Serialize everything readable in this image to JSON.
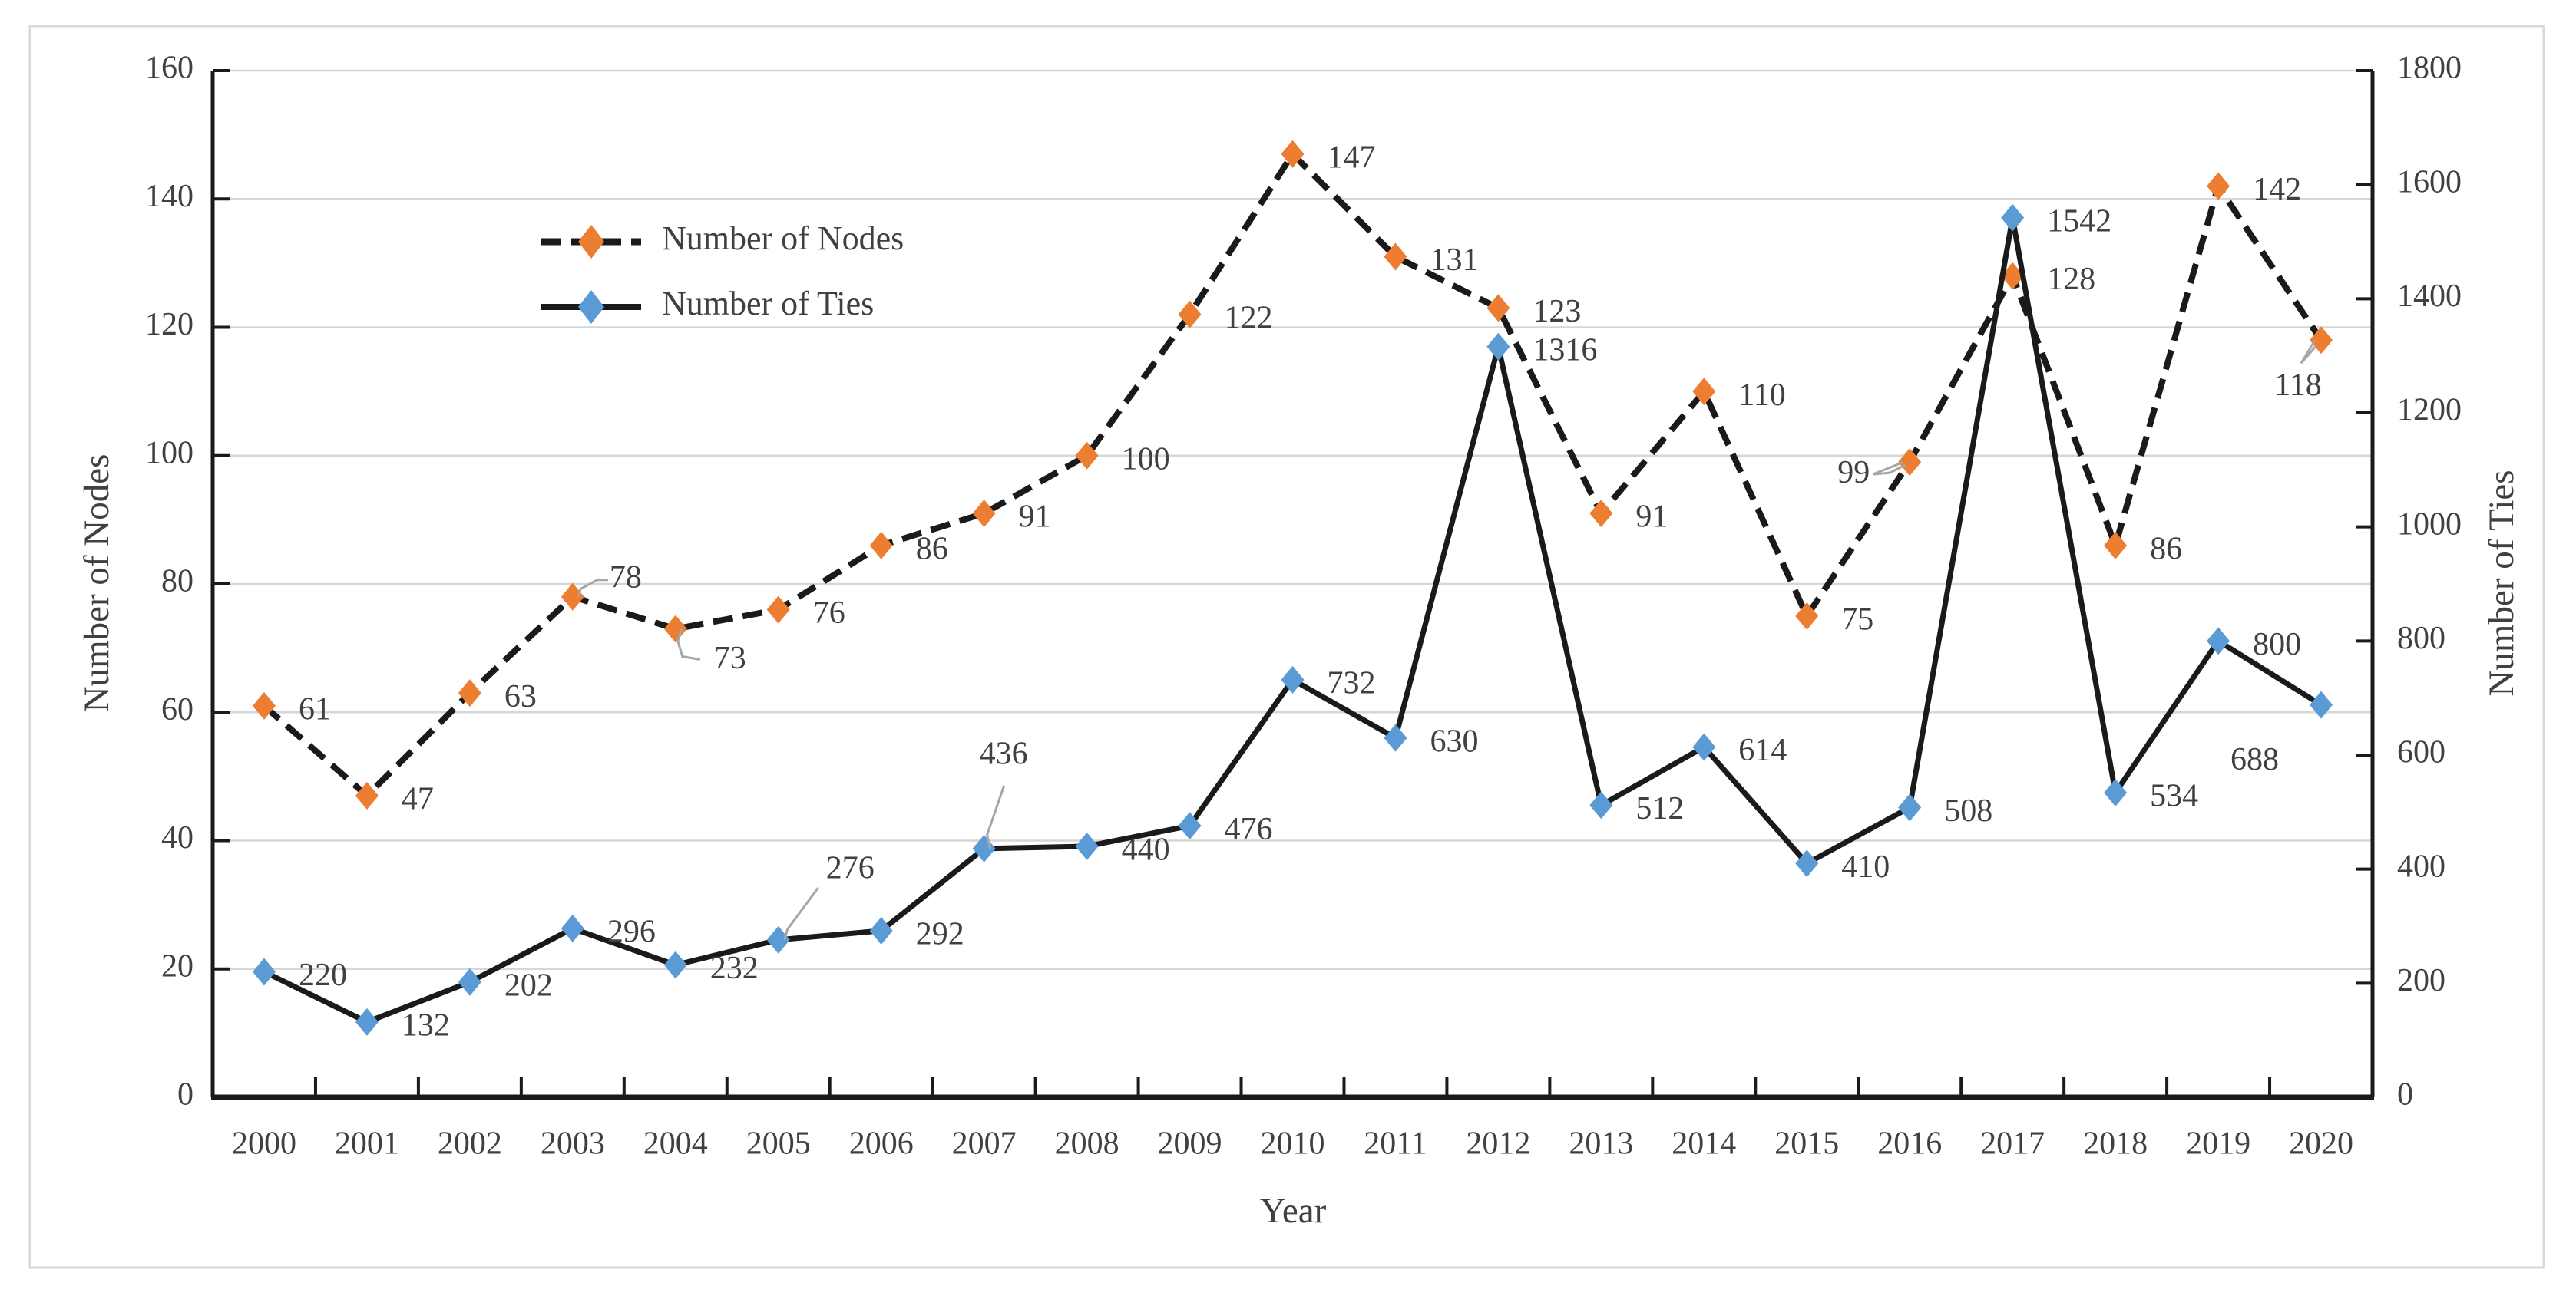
{
  "chart_data": {
    "type": "line",
    "title": "",
    "xlabel": "Year",
    "ylabel_left": "Number of Nodes",
    "ylabel_right": "Number of Ties",
    "x": [
      "2000",
      "2001",
      "2002",
      "2003",
      "2004",
      "2005",
      "2006",
      "2007",
      "2008",
      "2009",
      "2010",
      "2011",
      "2012",
      "2013",
      "2014",
      "2015",
      "2016",
      "2017",
      "2018",
      "2019",
      "2020"
    ],
    "ylim_left": [
      0,
      160
    ],
    "ytick_step_left": 20,
    "yticks_left": [
      0,
      20,
      40,
      60,
      80,
      100,
      120,
      140,
      160
    ],
    "ylim_right": [
      0,
      1800
    ],
    "ytick_step_right": 200,
    "yticks_right": [
      0,
      200,
      400,
      600,
      800,
      1000,
      1200,
      1400,
      1600,
      1800
    ],
    "grid": "horizontal",
    "legend_position": "upper-left-inside",
    "series": [
      {
        "name": "Number of Nodes",
        "axis": "left",
        "marker": "diamond",
        "marker_color": "#ED7D31",
        "line_color": "#1a1a1a",
        "line_style": "dashed",
        "values": [
          61,
          47,
          63,
          78,
          73,
          76,
          86,
          91,
          100,
          122,
          147,
          131,
          123,
          91,
          110,
          75,
          99,
          128,
          86,
          142,
          118
        ]
      },
      {
        "name": "Number of Ties",
        "axis": "right",
        "marker": "diamond",
        "marker_color": "#5B9BD5",
        "line_color": "#1a1a1a",
        "line_style": "solid",
        "values": [
          220,
          132,
          202,
          296,
          232,
          276,
          292,
          436,
          440,
          476,
          732,
          630,
          1316,
          512,
          614,
          410,
          508,
          1542,
          534,
          800,
          688
        ]
      }
    ]
  },
  "colors": {
    "background": "#ffffff",
    "border": "#d9d9d9",
    "gridline": "#d6d6d6",
    "axis": "#1a1a1a",
    "text": "#404040",
    "leader_line": "#a6a6a6",
    "nodes_marker": "#ED7D31",
    "ties_marker": "#5B9BD5"
  }
}
